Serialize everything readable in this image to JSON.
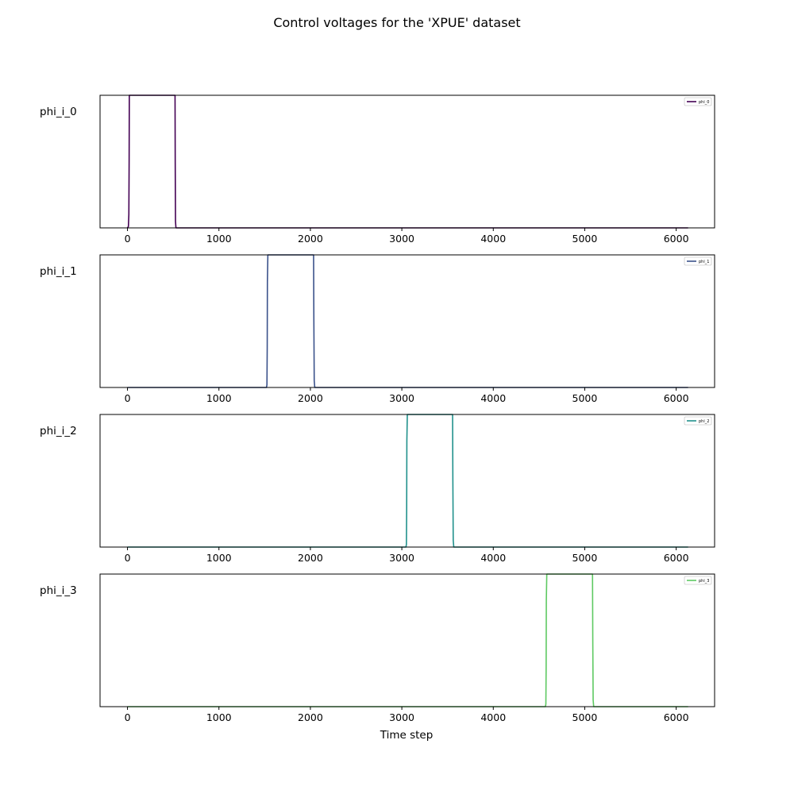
{
  "chart_data": {
    "type": "line",
    "title": "Control voltages for the 'XPUE' dataset",
    "xlabel": "Time step",
    "xlim": [
      -300,
      6420
    ],
    "xticks": [
      0,
      1000,
      2000,
      3000,
      4000,
      5000,
      6000
    ],
    "grid": false,
    "legend_position": "top-right",
    "subplots": [
      {
        "ylabel": "phi_i_0",
        "legend": "phi_0",
        "color": "#440154",
        "ylim": [
          0,
          1
        ],
        "x": [
          0,
          10,
          15,
          18,
          20,
          25,
          515,
          520,
          522,
          525,
          530,
          6130
        ],
        "y": [
          0,
          0.01,
          0.1,
          0.5,
          1,
          1,
          1,
          1,
          0.5,
          0.05,
          0,
          0
        ]
      },
      {
        "ylabel": "phi_i_1",
        "legend": "phi_1",
        "color": "#3b528b",
        "ylim": [
          0,
          1
        ],
        "x": [
          0,
          1520,
          1525,
          1528,
          1530,
          1535,
          2030,
          2035,
          2038,
          2042,
          2048,
          6130
        ],
        "y": [
          0,
          0,
          0.02,
          0.3,
          0.8,
          1,
          1,
          1,
          0.5,
          0.05,
          0,
          0
        ]
      },
      {
        "ylabel": "phi_i_2",
        "legend": "phi_2",
        "color": "#21918c",
        "ylim": [
          0,
          1
        ],
        "x": [
          0,
          3045,
          3050,
          3053,
          3055,
          3060,
          3550,
          3555,
          3558,
          3562,
          3568,
          6130
        ],
        "y": [
          0,
          0,
          0.02,
          0.3,
          0.8,
          1,
          1,
          1,
          0.5,
          0.05,
          0,
          0
        ]
      },
      {
        "ylabel": "phi_i_3",
        "legend": "phi_3",
        "color": "#5ec962",
        "ylim": [
          0,
          1
        ],
        "x": [
          0,
          4570,
          4575,
          4578,
          4580,
          4585,
          5080,
          5085,
          5088,
          5092,
          5098,
          6130
        ],
        "y": [
          0,
          0,
          0.02,
          0.3,
          0.8,
          1,
          1,
          1,
          0.5,
          0.05,
          0,
          0
        ]
      }
    ]
  }
}
